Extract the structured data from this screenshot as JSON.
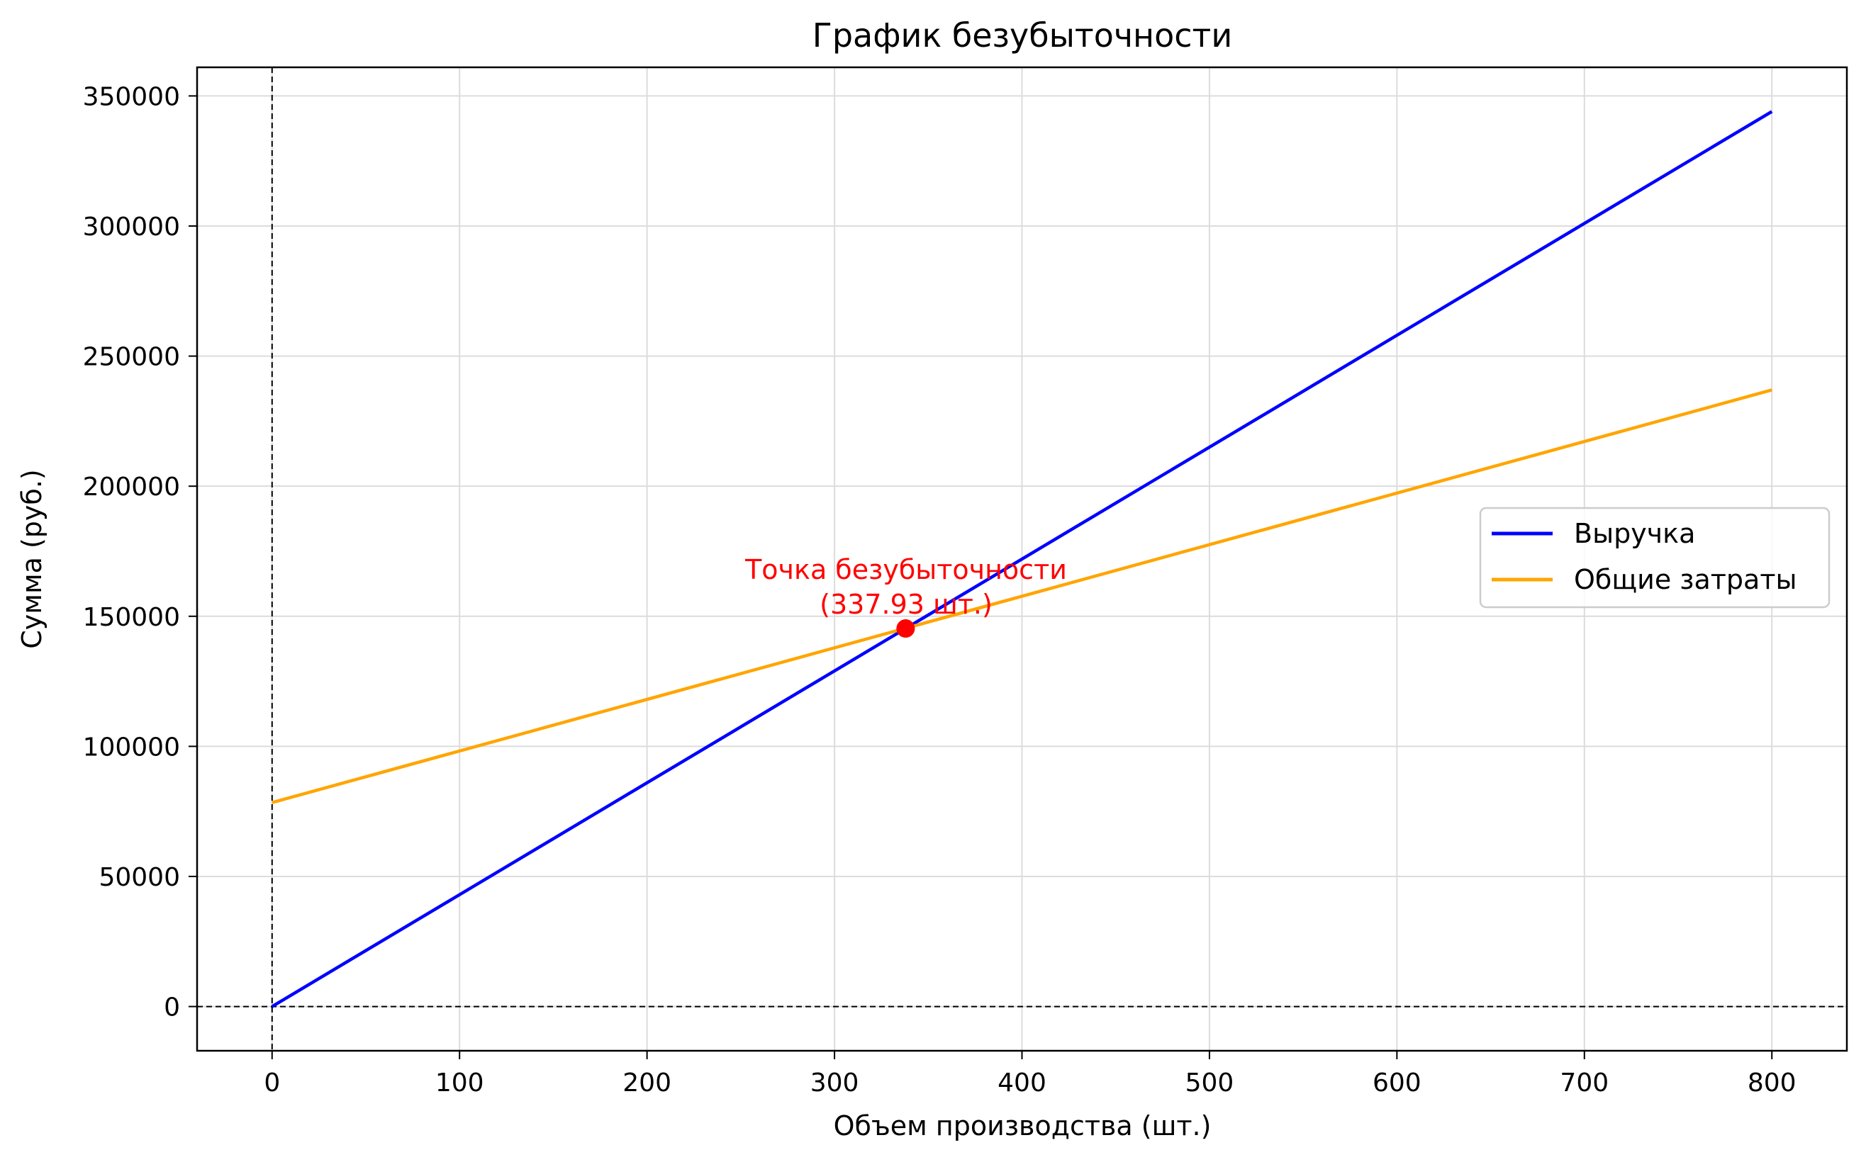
{
  "chart_data": {
    "type": "line",
    "title": "График безубыточности",
    "xlabel": "Объем производства (шт.)",
    "ylabel": "Сумма (руб.)",
    "xlim": [
      -40,
      840
    ],
    "ylim": [
      -17000,
      361000
    ],
    "xticks": [
      0,
      100,
      200,
      300,
      400,
      500,
      600,
      700,
      800
    ],
    "yticks": [
      0,
      50000,
      100000,
      150000,
      200000,
      250000,
      300000,
      350000
    ],
    "grid": true,
    "legend_position": "center-right",
    "series": [
      {
        "name": "Выручка",
        "color": "#0000ff",
        "x": [
          0,
          800
        ],
        "y": [
          0,
          344000
        ]
      },
      {
        "name": "Общие затраты",
        "color": "#ffa500",
        "x": [
          0,
          800
        ],
        "y": [
          78400,
          237000
        ]
      }
    ],
    "reference_lines": [
      {
        "orientation": "vertical",
        "value": 0,
        "style": "dashed",
        "color": "#000000"
      },
      {
        "orientation": "horizontal",
        "value": 0,
        "style": "dashed",
        "color": "#000000"
      }
    ],
    "annotation": {
      "line1": "Точка безубыточности",
      "line2": "(337.93 шт.)",
      "x": 337.93,
      "y": 145300,
      "color": "#ff0000"
    }
  }
}
